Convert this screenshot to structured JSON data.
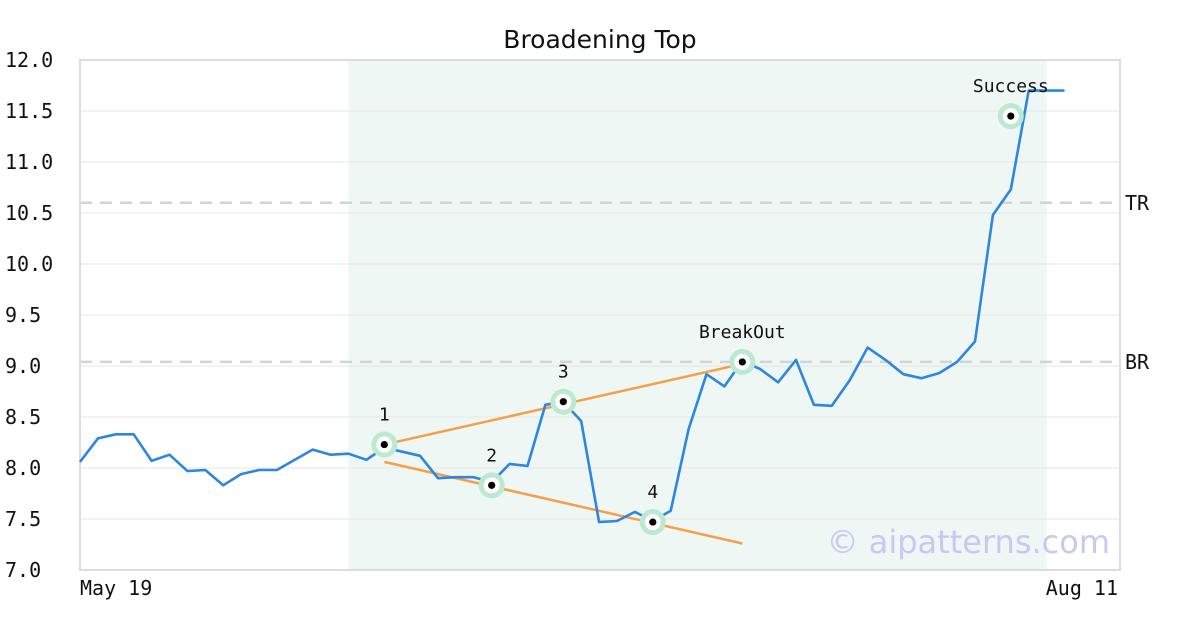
{
  "chart_data": {
    "type": "line",
    "title": "Broadening Top",
    "ylim": [
      7.0,
      12.0
    ],
    "y_ticks": [
      "12.0",
      "11.5",
      "11.0",
      "10.5",
      "10.0",
      "9.5",
      "9.0",
      "8.5",
      "8.0",
      "7.5",
      "7.0"
    ],
    "x_tick_labels": {
      "start": "May 19",
      "end": "Aug 11"
    },
    "grid": true,
    "series": [
      {
        "color": "#2e86de",
        "values": [
          8.06,
          8.29,
          8.33,
          8.33,
          8.07,
          8.13,
          7.97,
          7.98,
          7.83,
          7.94,
          7.98,
          7.98,
          8.08,
          8.18,
          8.13,
          8.14,
          8.08,
          8.2,
          8.16,
          8.12,
          7.9,
          7.91,
          7.91,
          7.86,
          8.04,
          8.02,
          8.62,
          8.65,
          8.46,
          7.47,
          7.48,
          7.57,
          7.48,
          7.58,
          8.38,
          8.92,
          8.8,
          9.05,
          8.97,
          8.84,
          9.06,
          8.62,
          8.61,
          8.86,
          9.18,
          9.06,
          8.92,
          8.88,
          8.93,
          9.04,
          9.24,
          10.48,
          10.73,
          11.7,
          11.7,
          11.7
        ]
      }
    ],
    "horizontal_levels": [
      {
        "label": "TR",
        "value": 10.6
      },
      {
        "label": "BR",
        "value": 9.04
      }
    ],
    "highlight_region": {
      "start_index": 15,
      "end_index": 54,
      "color": "#eef7f3"
    },
    "trend_lines": [
      {
        "color": "#f4a04a",
        "from": {
          "index": 17,
          "value": 8.23
        },
        "to": {
          "index": 37,
          "value": 9.02
        }
      },
      {
        "color": "#f4a04a",
        "from": {
          "index": 17,
          "value": 8.06
        },
        "to": {
          "index": 37,
          "value": 7.26
        }
      }
    ],
    "markers": [
      {
        "label": "1",
        "index": 17,
        "value": 8.23,
        "label_side": "above"
      },
      {
        "label": "2",
        "index": 23,
        "value": 7.83,
        "label_side": "above"
      },
      {
        "label": "3",
        "index": 27,
        "value": 8.65,
        "label_side": "above"
      },
      {
        "label": "4",
        "index": 32,
        "value": 7.47,
        "label_side": "above"
      },
      {
        "label": "BreakOut",
        "index": 37,
        "value": 9.04,
        "label_side": "above"
      },
      {
        "label": "Success",
        "index": 52,
        "value": 11.45,
        "label_side": "above"
      }
    ],
    "watermark": "© aipatterns.com"
  }
}
